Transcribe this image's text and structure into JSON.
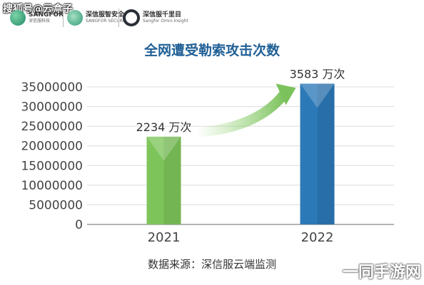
{
  "watermark_top": "搜狐号@云盒子",
  "logos": [
    {
      "name": "SANGFOR",
      "sub": "深信服科技"
    },
    {
      "name": "深信服智安全",
      "sub": "SANGFOR SECURITY"
    },
    {
      "name": "深信服千里目",
      "sub": "Sangfor Omni-Insight"
    }
  ],
  "chart_data": {
    "type": "bar",
    "title": "全网遭受勒索攻击次数",
    "categories": [
      "2021",
      "2022"
    ],
    "values": [
      22340000,
      35830000
    ],
    "data_labels": [
      "2234 万次",
      "3583 万次"
    ],
    "ylim": [
      0,
      35000000
    ],
    "yticks": [
      0,
      5000000,
      10000000,
      15000000,
      20000000,
      25000000,
      30000000,
      35000000
    ],
    "bar_colors": [
      "#7dc55a",
      "#2c79b8"
    ],
    "grid": true,
    "xlabel": "",
    "ylabel": ""
  },
  "source_text": "数据来源：深信服云端监测",
  "watermark_br": "一同手游网"
}
